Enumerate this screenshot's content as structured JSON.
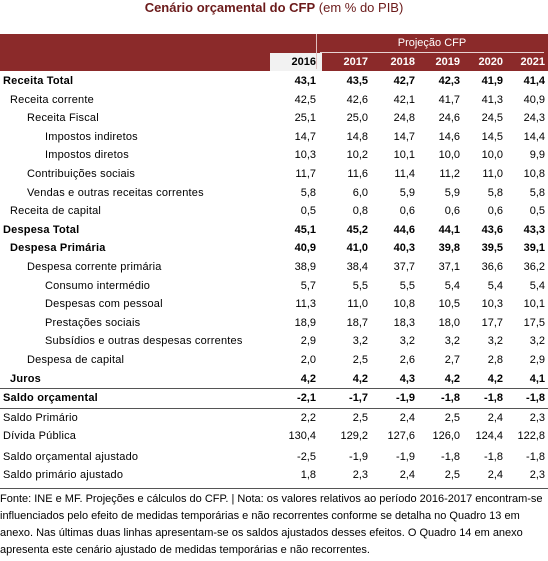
{
  "title": {
    "bold": "Cenário orçamental do CFP",
    "rest": " (em % do PIB)"
  },
  "header": {
    "projection_label": "Projeção CFP",
    "years": [
      "2016",
      "2017",
      "2018",
      "2019",
      "2020",
      "2021"
    ]
  },
  "rows": [
    {
      "label": "Receita Total",
      "indent": 0,
      "bold": true,
      "values": [
        "43,1",
        "43,5",
        "42,7",
        "42,3",
        "41,9",
        "41,4"
      ]
    },
    {
      "label": "Receita corrente",
      "indent": 1,
      "values": [
        "42,5",
        "42,6",
        "42,1",
        "41,7",
        "41,3",
        "40,9"
      ]
    },
    {
      "label": "Receita Fiscal",
      "indent": 2,
      "values": [
        "25,1",
        "25,0",
        "24,8",
        "24,6",
        "24,5",
        "24,3"
      ]
    },
    {
      "label": "Impostos indiretos",
      "indent": 3,
      "values": [
        "14,7",
        "14,8",
        "14,7",
        "14,6",
        "14,5",
        "14,4"
      ]
    },
    {
      "label": "Impostos diretos",
      "indent": 3,
      "values": [
        "10,3",
        "10,2",
        "10,1",
        "10,0",
        "10,0",
        "9,9"
      ]
    },
    {
      "label": "Contribuições sociais",
      "indent": 2,
      "values": [
        "11,7",
        "11,6",
        "11,4",
        "11,2",
        "11,0",
        "10,8"
      ]
    },
    {
      "label": "Vendas e outras receitas correntes",
      "indent": 2,
      "values": [
        "5,8",
        "6,0",
        "5,9",
        "5,9",
        "5,8",
        "5,8"
      ]
    },
    {
      "label": "Receita de capital",
      "indent": 1,
      "values": [
        "0,5",
        "0,8",
        "0,6",
        "0,6",
        "0,6",
        "0,5"
      ]
    },
    {
      "label": "Despesa Total",
      "indent": 0,
      "bold": true,
      "values": [
        "45,1",
        "45,2",
        "44,6",
        "44,1",
        "43,6",
        "43,3"
      ]
    },
    {
      "label": "Despesa Primária",
      "indent": 1,
      "bold": true,
      "values": [
        "40,9",
        "41,0",
        "40,3",
        "39,8",
        "39,5",
        "39,1"
      ]
    },
    {
      "label": "Despesa corrente primária",
      "indent": 2,
      "values": [
        "38,9",
        "38,4",
        "37,7",
        "37,1",
        "36,6",
        "36,2"
      ]
    },
    {
      "label": "Consumo intermédio",
      "indent": 3,
      "values": [
        "5,7",
        "5,5",
        "5,5",
        "5,4",
        "5,4",
        "5,4"
      ]
    },
    {
      "label": "Despesas com pessoal",
      "indent": 3,
      "values": [
        "11,3",
        "11,0",
        "10,8",
        "10,5",
        "10,3",
        "10,1"
      ]
    },
    {
      "label": "Prestações sociais",
      "indent": 3,
      "values": [
        "18,9",
        "18,7",
        "18,3",
        "18,0",
        "17,7",
        "17,5"
      ]
    },
    {
      "label": "Subsídios e outras despesas correntes",
      "indent": 3,
      "values": [
        "2,9",
        "3,2",
        "3,2",
        "3,2",
        "3,2",
        "3,2"
      ]
    },
    {
      "label": "Despesa de capital",
      "indent": 2,
      "values": [
        "2,0",
        "2,5",
        "2,6",
        "2,7",
        "2,8",
        "2,9"
      ]
    },
    {
      "label": "Juros",
      "indent": 1,
      "bold": true,
      "values": [
        "4,2",
        "4,2",
        "4,3",
        "4,2",
        "4,2",
        "4,1"
      ]
    },
    {
      "label": "Saldo orçamental",
      "indent": 0,
      "bold": true,
      "line": "both",
      "values": [
        "-2,1",
        "-1,7",
        "-1,9",
        "-1,8",
        "-1,8",
        "-1,8"
      ]
    },
    {
      "label": "Saldo Primário",
      "indent": 0,
      "values": [
        "2,2",
        "2,5",
        "2,4",
        "2,5",
        "2,4",
        "2,3"
      ]
    },
    {
      "label": "Dívida Pública",
      "indent": 0,
      "values": [
        "130,4",
        "129,2",
        "127,6",
        "126,0",
        "124,4",
        "122,8"
      ]
    },
    {
      "label": "Saldo orçamental ajustado",
      "indent": 0,
      "gap": true,
      "values": [
        "-2,5",
        "-1,9",
        "-1,9",
        "-1,8",
        "-1,8",
        "-1,8"
      ]
    },
    {
      "label": "Saldo primário ajustado",
      "indent": 0,
      "values": [
        "1,8",
        "2,3",
        "2,4",
        "2,5",
        "2,4",
        "2,3"
      ]
    }
  ],
  "footer": "Fonte: INE e MF. Projeções e cálculos do CFP. | Nota: os valores relativos ao período 2016-2017 encontram-se influenciados pelo efeito de medidas temporárias e não recorrentes conforme se detalha no Quadro 13 em anexo. Nas últimas duas linhas apresentam-se os saldos ajustados desses efeitos. O Quadro 14 em anexo apresenta este cenário ajustado de medidas temporárias e não recorrentes.",
  "colors": {
    "header_bg": "#8b2a2a",
    "title": "#6b1a1a"
  }
}
